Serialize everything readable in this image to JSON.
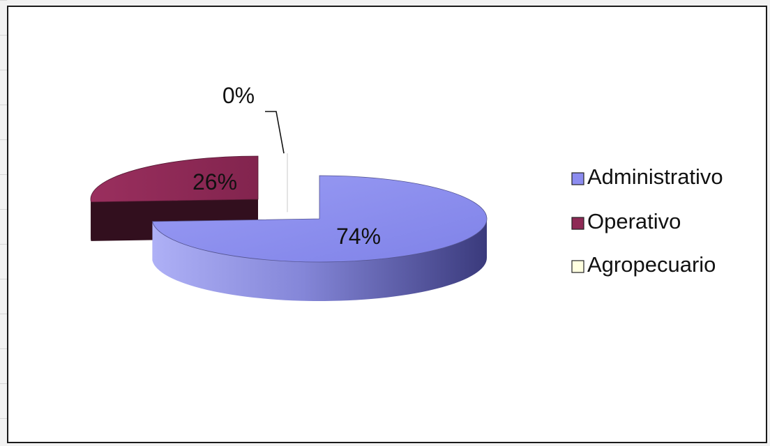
{
  "chart_data": {
    "type": "pie",
    "style": "3d-exploded",
    "categories": [
      "Administrativo",
      "Operativo",
      "Agropecuario"
    ],
    "values": [
      74,
      26,
      0
    ],
    "value_labels": [
      "74%",
      "26%",
      "0%"
    ],
    "colors": {
      "Administrativo": "#8c8cf0",
      "Operativo": "#8e2a55",
      "Agropecuario": "#ffffe0"
    },
    "legend_position": "right",
    "title": ""
  }
}
